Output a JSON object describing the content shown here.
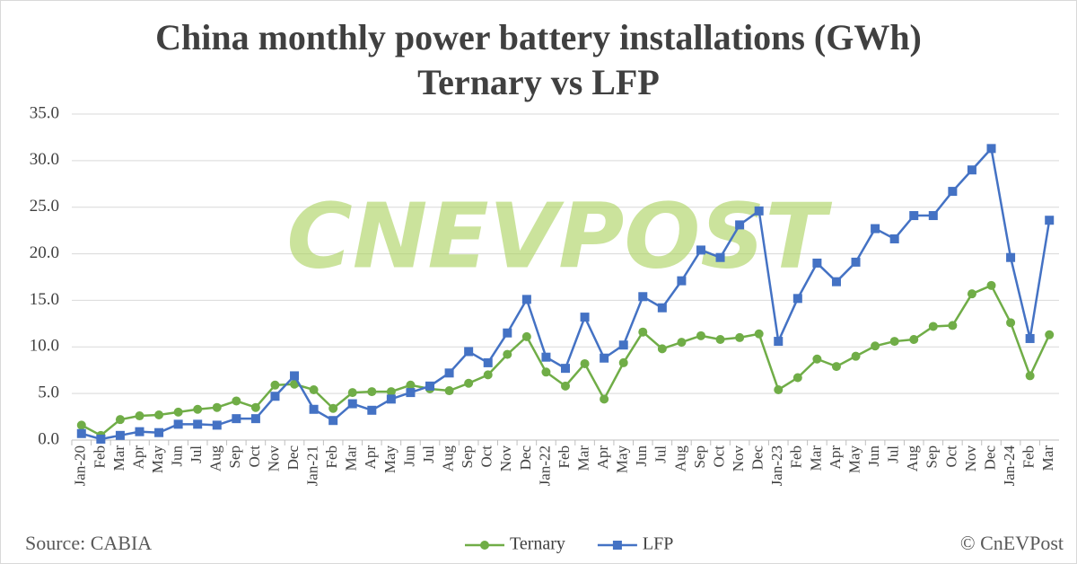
{
  "chart_data": {
    "type": "line",
    "title": "China monthly power battery installations (GWh)",
    "subtitle": "Ternary vs LFP",
    "watermark": "CNEVPOST",
    "source": "Source: CABIA",
    "credit": "© CnEVPost",
    "categories": [
      "Jan-20",
      "Feb",
      "Mar",
      "Apr",
      "May",
      "Jun",
      "Jul",
      "Aug",
      "Sep",
      "Oct",
      "Nov",
      "Dec",
      "Jan-21",
      "Feb",
      "Mar",
      "Apr",
      "May",
      "Jun",
      "Jul",
      "Aug",
      "Sep",
      "Oct",
      "Nov",
      "Dec",
      "Jan-22",
      "Feb",
      "Mar",
      "Apr",
      "May",
      "Jun",
      "Jul",
      "Aug",
      "Sep",
      "Oct",
      "Nov",
      "Dec",
      "Jan-23",
      "Feb",
      "Mar",
      "Apr",
      "May",
      "Jun",
      "Jul",
      "Aug",
      "Sep",
      "Oct",
      "Nov",
      "Dec",
      "Jan-24",
      "Feb",
      "Mar"
    ],
    "series": [
      {
        "name": "Ternary",
        "color": "#70ad47",
        "marker": "circle",
        "values": [
          1.6,
          0.5,
          2.2,
          2.6,
          2.7,
          3.0,
          3.3,
          3.5,
          4.2,
          3.5,
          5.9,
          6.0,
          5.4,
          3.4,
          5.1,
          5.2,
          5.2,
          5.9,
          5.5,
          5.3,
          6.1,
          7.0,
          9.2,
          11.1,
          7.3,
          5.8,
          8.2,
          4.4,
          8.3,
          11.6,
          9.8,
          10.5,
          11.2,
          10.8,
          11.0,
          11.4,
          5.4,
          6.7,
          8.7,
          7.9,
          9.0,
          10.1,
          10.6,
          10.8,
          12.2,
          12.3,
          15.7,
          16.6,
          12.6,
          6.9,
          11.3
        ]
      },
      {
        "name": "LFP",
        "color": "#4472c4",
        "marker": "square",
        "values": [
          0.7,
          0.1,
          0.5,
          0.9,
          0.8,
          1.7,
          1.7,
          1.6,
          2.3,
          2.3,
          4.7,
          6.9,
          3.3,
          2.1,
          3.9,
          3.2,
          4.4,
          5.1,
          5.8,
          7.2,
          9.5,
          8.3,
          11.5,
          15.1,
          8.9,
          7.7,
          13.2,
          8.8,
          10.2,
          15.4,
          14.2,
          17.1,
          20.4,
          19.6,
          23.1,
          24.6,
          10.6,
          15.2,
          19.0,
          17.0,
          19.1,
          22.7,
          21.6,
          24.1,
          24.1,
          26.7,
          29.0,
          31.3,
          19.6,
          10.9,
          23.6
        ]
      }
    ],
    "ylim": [
      0,
      35
    ],
    "yticks": [
      {
        "value": 0,
        "label": "0.0"
      },
      {
        "value": 5,
        "label": "5.0"
      },
      {
        "value": 10,
        "label": "10.0"
      },
      {
        "value": 15,
        "label": "15.0"
      },
      {
        "value": 20,
        "label": "20.0"
      },
      {
        "value": 25,
        "label": "25.0"
      },
      {
        "value": 30,
        "label": "30.0"
      },
      {
        "value": 35,
        "label": "35.0"
      }
    ],
    "grid": true,
    "legend": "bottom"
  }
}
